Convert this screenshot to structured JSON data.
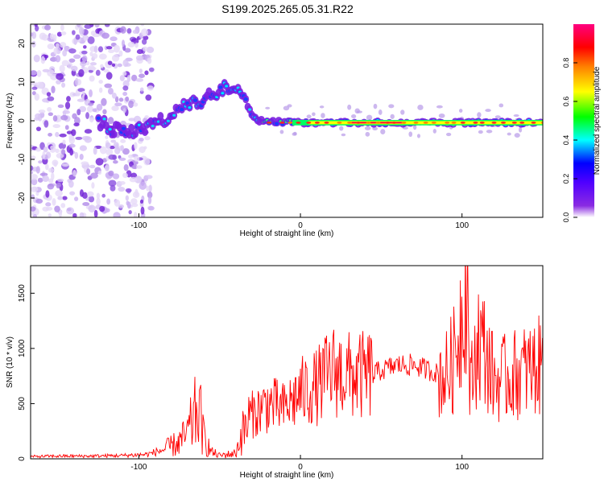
{
  "title": "S199.2025.265.05.31.R22",
  "chart_data": [
    {
      "type": "heatmap",
      "xlabel": "Height of straight line (km)",
      "ylabel": "Frequency (Hz)",
      "xlim": [
        -167,
        150
      ],
      "ylim": [
        -25,
        25
      ],
      "xticks": [
        -100,
        0,
        100
      ],
      "yticks": [
        -20,
        -10,
        0,
        10,
        20
      ],
      "colorbar": {
        "label": "Normalized spectral amplitude",
        "range": [
          0,
          1
        ],
        "ticks": [
          "0.0",
          "0.2",
          "0.4",
          "0.6",
          "0.8"
        ],
        "colors": [
          "#ffffff",
          "#7f00ff",
          "#0000ff",
          "#00ffff",
          "#00ff00",
          "#ffff00",
          "#ff8000",
          "#ff0000",
          "#ff0080"
        ]
      },
      "ridge": [
        {
          "x": -120,
          "f": -2.0
        },
        {
          "x": -105,
          "f": -3.0
        },
        {
          "x": -95,
          "f": -1.5
        },
        {
          "x": -85,
          "f": 0.0
        },
        {
          "x": -75,
          "f": 3.0
        },
        {
          "x": -62,
          "f": 5.0
        },
        {
          "x": -50,
          "f": 8.0
        },
        {
          "x": -40,
          "f": 9.5
        },
        {
          "x": -32,
          "f": 4.0
        },
        {
          "x": -25,
          "f": 0.0
        },
        {
          "x": 0,
          "f": -0.5
        },
        {
          "x": 150,
          "f": -0.5
        }
      ]
    },
    {
      "type": "line",
      "xlabel": "Height of straight line (km)",
      "ylabel": "SNR (10 * v/v)",
      "xlim": [
        -167,
        150
      ],
      "ylim": [
        0,
        1750
      ],
      "xticks": [
        -100,
        0,
        100
      ],
      "yticks": [
        0,
        500,
        1000,
        1500
      ],
      "color": "#ff0000",
      "series": [
        {
          "name": "SNR",
          "x": [
            -167,
            -150,
            -130,
            -110,
            -95,
            -85,
            -75,
            -70,
            -63,
            -60,
            -55,
            -50,
            -40,
            -37,
            -30,
            -20,
            -10,
            0,
            10,
            20,
            30,
            40,
            50,
            60,
            70,
            80,
            90,
            95,
            100,
            103,
            105,
            110,
            115,
            120,
            130,
            140,
            150
          ],
          "y": [
            20,
            25,
            25,
            30,
            40,
            80,
            150,
            220,
            480,
            200,
            60,
            30,
            50,
            200,
            400,
            500,
            450,
            600,
            650,
            800,
            750,
            750,
            800,
            850,
            850,
            800,
            750,
            900,
            1350,
            1750,
            600,
            1100,
            950,
            700,
            750,
            800,
            850
          ]
        }
      ]
    }
  ]
}
